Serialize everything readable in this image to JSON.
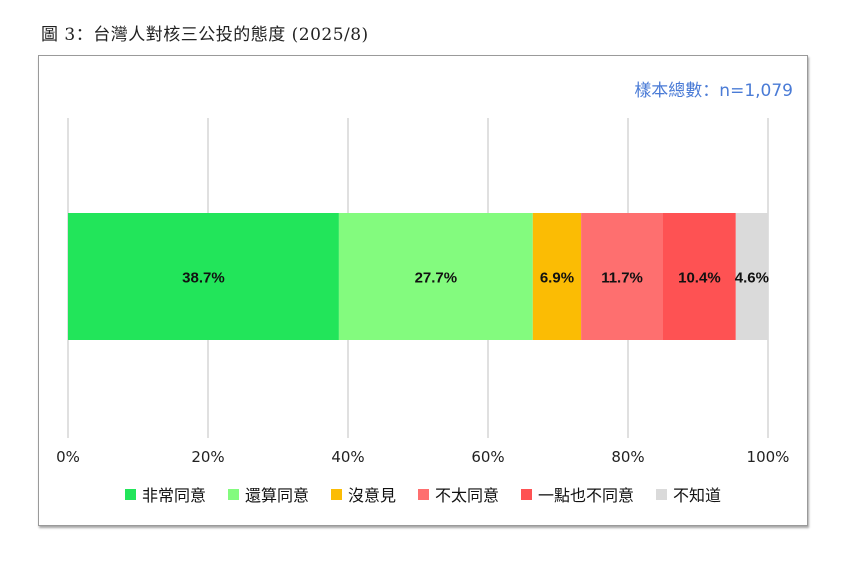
{
  "figure": {
    "title": "圖 3：台灣人對核三公投的態度 (2025/8)",
    "sample_note": "樣本總數：n=1,079"
  },
  "chart_data": {
    "type": "bar",
    "orientation": "horizontal-stacked-100",
    "categories": [
      ""
    ],
    "series": [
      {
        "name": "非常同意",
        "values": [
          38.7
        ],
        "label": "38.7%",
        "color": "#22e55a"
      },
      {
        "name": "還算同意",
        "values": [
          27.7
        ],
        "label": "27.7%",
        "color": "#83fb7e"
      },
      {
        "name": "沒意見",
        "values": [
          6.9
        ],
        "label": "6.9%",
        "color": "#fbbc04"
      },
      {
        "name": "不太同意",
        "values": [
          11.7
        ],
        "label": "11.7%",
        "color": "#fe6f6f"
      },
      {
        "name": "一點也不同意",
        "values": [
          10.4
        ],
        "label": "10.4%",
        "color": "#fe5253"
      },
      {
        "name": "不知道",
        "values": [
          4.6
        ],
        "label": "4.6%",
        "color": "#dadada"
      }
    ],
    "x_ticks": [
      "0%",
      "20%",
      "40%",
      "60%",
      "80%",
      "100%"
    ],
    "xlim": [
      0,
      100
    ],
    "grid": true,
    "legend_position": "bottom"
  }
}
